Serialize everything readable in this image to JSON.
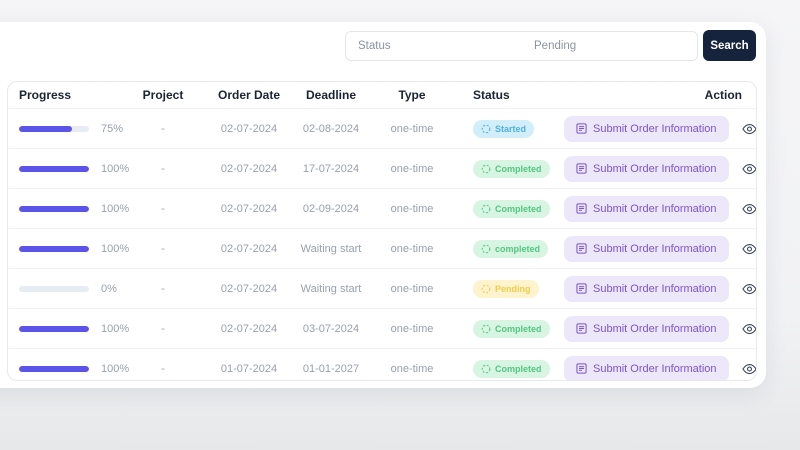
{
  "search": {
    "status_placeholder": "Status",
    "query_value": "Pending",
    "button_label": "Search"
  },
  "table": {
    "headers": [
      "Progress",
      "Project",
      "Order Date",
      "Deadline",
      "Type",
      "Status",
      "Action"
    ],
    "action_button_label": "Submit Order Information",
    "rows": [
      {
        "progress_pct": 75,
        "progress_label": "75%",
        "project": "-",
        "order_date": "02-07-2024",
        "deadline": "02-08-2024",
        "type": "one-time",
        "status": {
          "label": "Started",
          "kind": "info"
        }
      },
      {
        "progress_pct": 100,
        "progress_label": "100%",
        "project": "-",
        "order_date": "02-07-2024",
        "deadline": "17-07-2024",
        "type": "one-time",
        "status": {
          "label": "Completed",
          "kind": "success"
        }
      },
      {
        "progress_pct": 100,
        "progress_label": "100%",
        "project": "-",
        "order_date": "02-07-2024",
        "deadline": "02-09-2024",
        "type": "one-time",
        "status": {
          "label": "Completed",
          "kind": "success"
        }
      },
      {
        "progress_pct": 100,
        "progress_label": "100%",
        "project": "-",
        "order_date": "02-07-2024",
        "deadline": "Waiting start",
        "type": "one-time",
        "status": {
          "label": "completed",
          "kind": "success"
        }
      },
      {
        "progress_pct": 0,
        "progress_label": "0%",
        "project": "-",
        "order_date": "02-07-2024",
        "deadline": "Waiting start",
        "type": "one-time",
        "status": {
          "label": "Pending",
          "kind": "warning"
        }
      },
      {
        "progress_pct": 100,
        "progress_label": "100%",
        "project": "-",
        "order_date": "02-07-2024",
        "deadline": "03-07-2024",
        "type": "one-time",
        "status": {
          "label": "Completed",
          "kind": "success"
        }
      },
      {
        "progress_pct": 100,
        "progress_label": "100%",
        "project": "-",
        "order_date": "01-07-2024",
        "deadline": "01-01-2027",
        "type": "one-time",
        "status": {
          "label": "Completed",
          "kind": "success"
        }
      }
    ]
  },
  "colors": {
    "accent": "#5c54e8",
    "navy": "#16233c",
    "info_bg": "#d2eefa",
    "info_fg": "#4fb0e2",
    "success_bg": "#d8f4e2",
    "success_fg": "#52c882",
    "warn_bg": "#fdf3cd",
    "warn_fg": "#f0cc4e",
    "btn_bg": "#ece7f9",
    "btn_fg": "#7a54cf"
  }
}
